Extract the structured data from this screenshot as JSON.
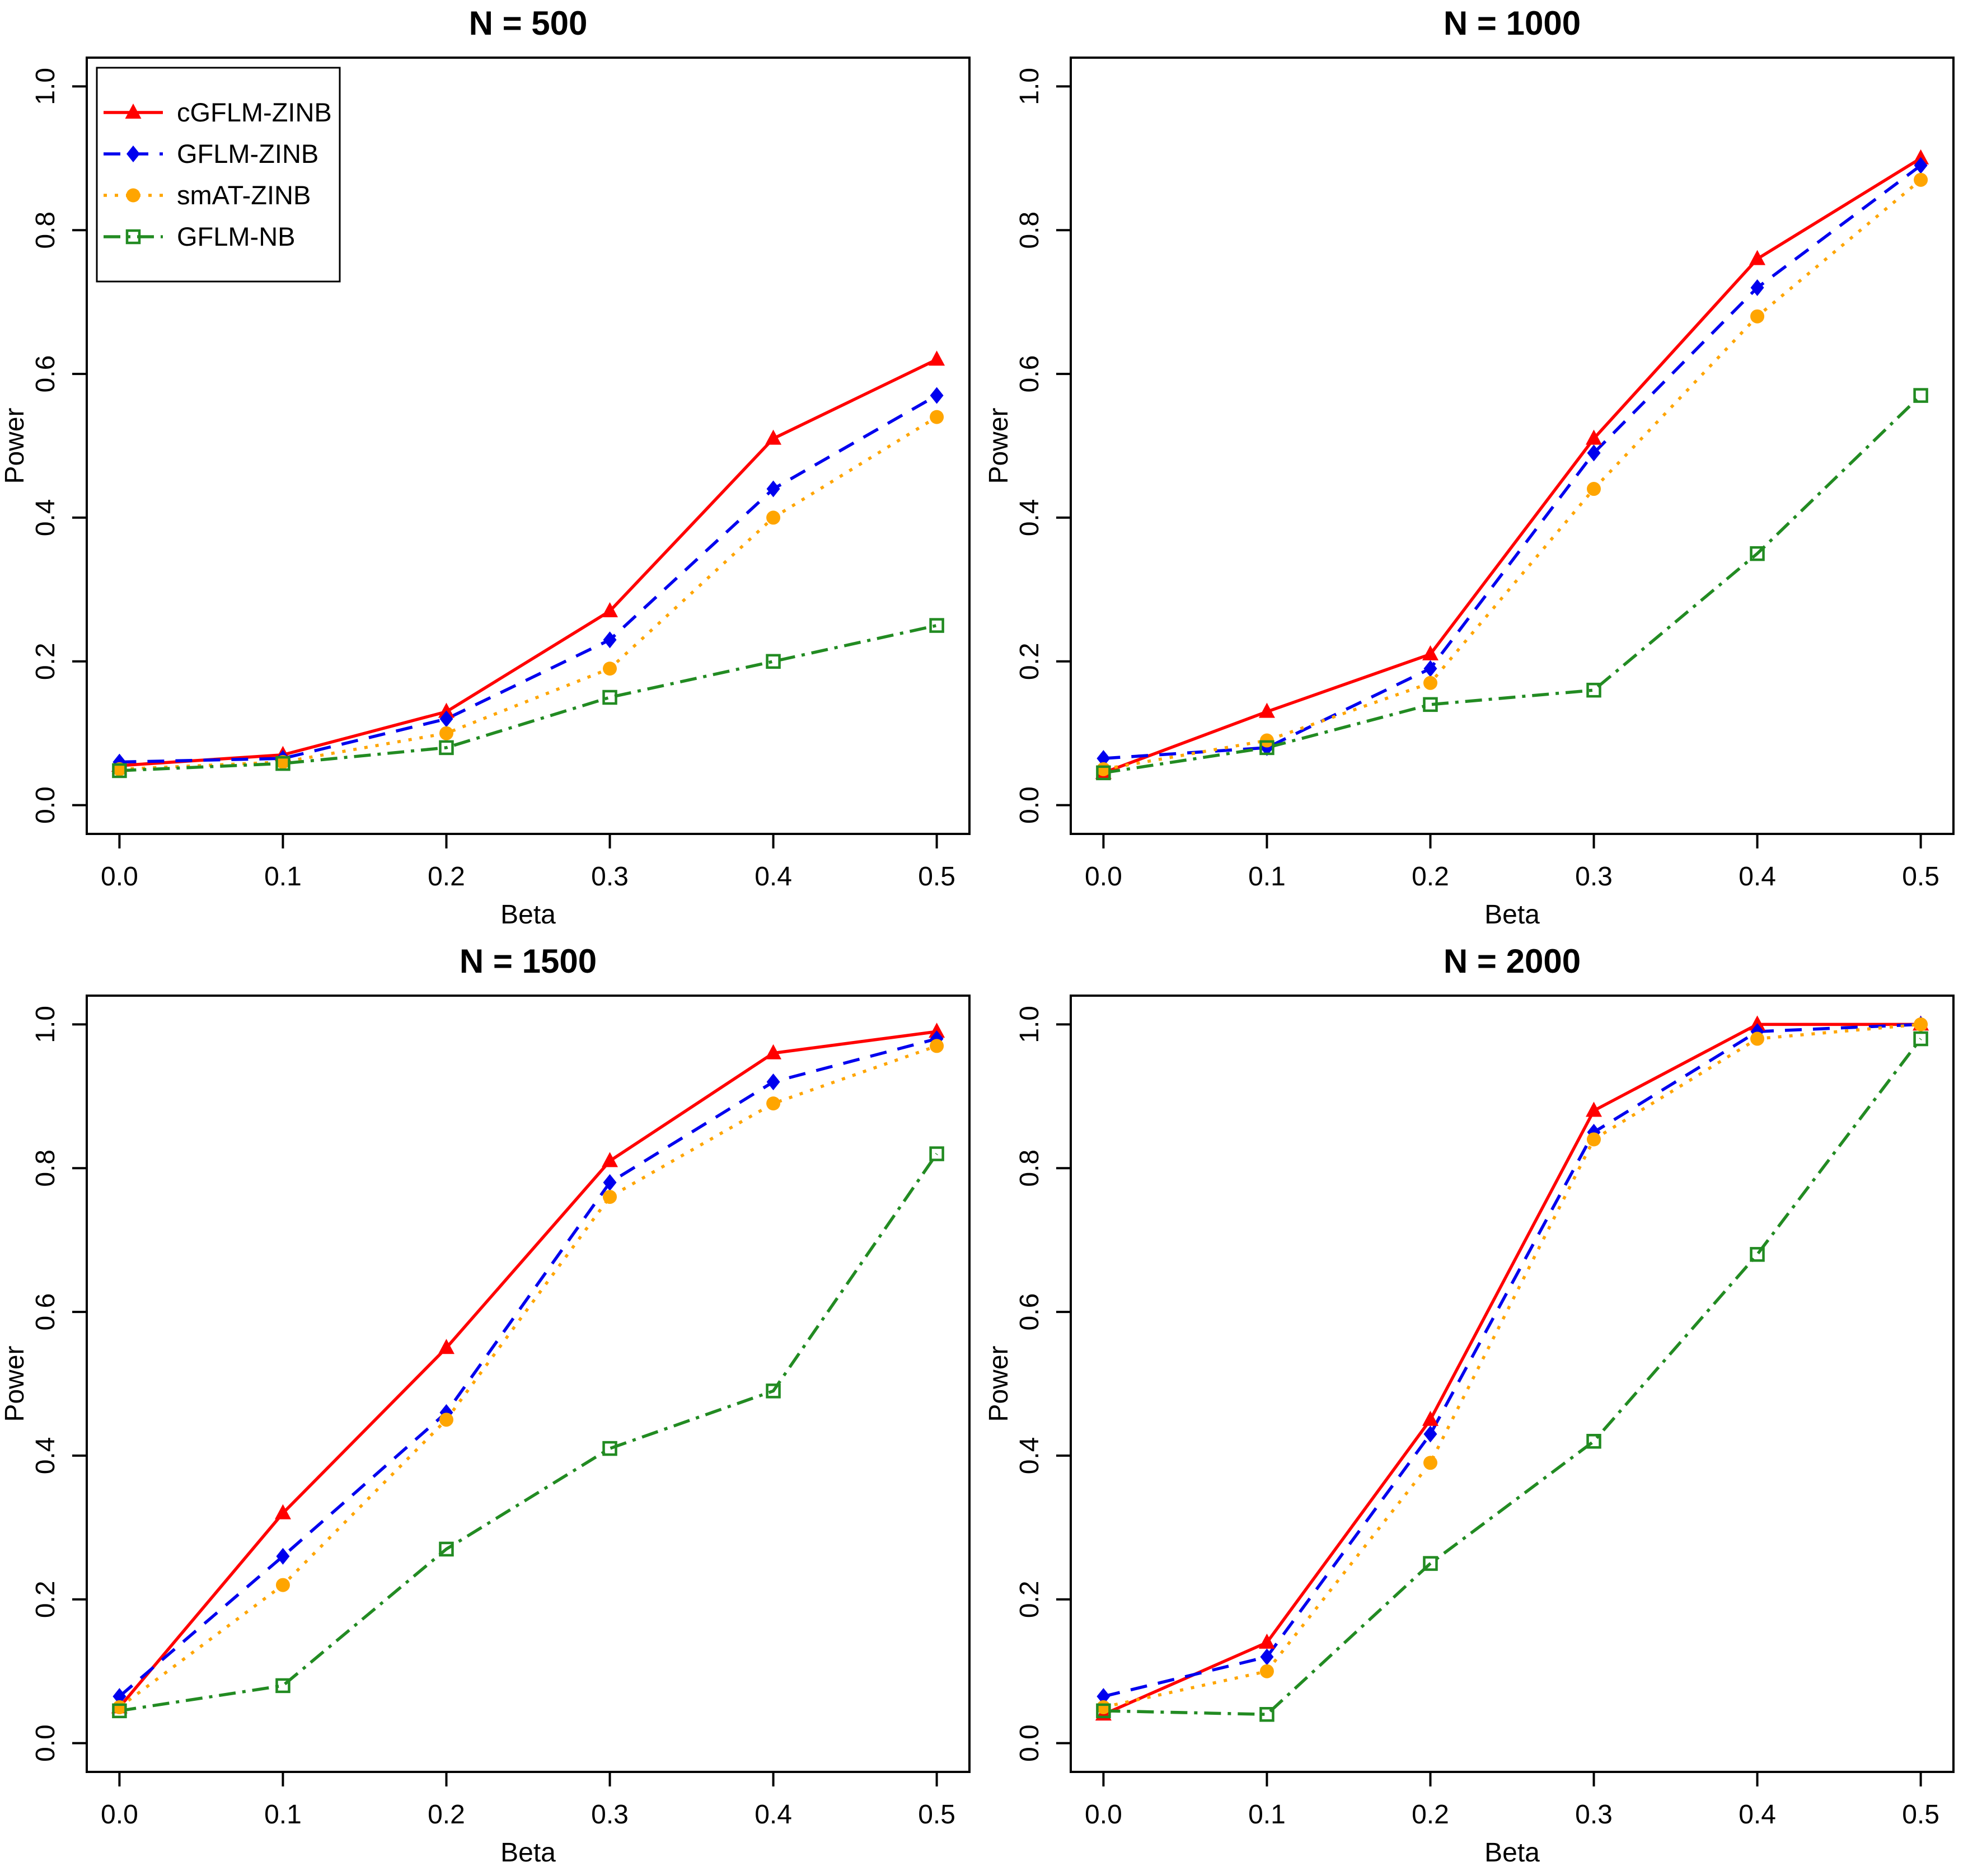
{
  "figure": {
    "background": "#ffffff",
    "axis_color": "#000000",
    "xlabel": "Beta",
    "ylabel": "Power",
    "x_tick_values": [
      0.0,
      0.1,
      0.2,
      0.3,
      0.4,
      0.5
    ],
    "x_tick_labels": [
      "0.0",
      "0.1",
      "0.2",
      "0.3",
      "0.4",
      "0.5"
    ],
    "y_tick_values": [
      0.0,
      0.2,
      0.4,
      0.6,
      0.8,
      1.0
    ],
    "y_tick_labels": [
      "0.0",
      "0.2",
      "0.4",
      "0.6",
      "0.8",
      "1.0"
    ]
  },
  "series_meta": [
    {
      "name": "cGFLM-ZINB",
      "color": "#FF0000",
      "marker": "triangle",
      "linestyle": "solid"
    },
    {
      "name": "GFLM-ZINB",
      "color": "#0000EE",
      "marker": "diamond",
      "linestyle": "dashed"
    },
    {
      "name": "smAT-ZINB",
      "color": "#FFA500",
      "marker": "circle",
      "linestyle": "dotted"
    },
    {
      "name": "GFLM-NB",
      "color": "#228B22",
      "marker": "open-square",
      "linestyle": "dotdash"
    }
  ],
  "legend": {
    "position": "topleft",
    "entries": [
      "cGFLM-ZINB",
      "GFLM-ZINB",
      "smAT-ZINB",
      "GFLM-NB"
    ]
  },
  "chart_data": [
    {
      "type": "line",
      "title": "N = 500",
      "xlabel": "Beta",
      "ylabel": "Power",
      "x": [
        0.0,
        0.1,
        0.2,
        0.3,
        0.4,
        0.5
      ],
      "xlim": [
        0.0,
        0.5
      ],
      "ylim": [
        0.0,
        1.0
      ],
      "grid": false,
      "legend": true,
      "series": [
        {
          "name": "cGFLM-ZINB",
          "values": [
            0.055,
            0.07,
            0.13,
            0.27,
            0.51,
            0.62
          ]
        },
        {
          "name": "GFLM-ZINB",
          "values": [
            0.06,
            0.065,
            0.12,
            0.23,
            0.44,
            0.57
          ]
        },
        {
          "name": "smAT-ZINB",
          "values": [
            0.05,
            0.06,
            0.1,
            0.19,
            0.4,
            0.54
          ]
        },
        {
          "name": "GFLM-NB",
          "values": [
            0.048,
            0.058,
            0.08,
            0.15,
            0.2,
            0.25
          ]
        }
      ]
    },
    {
      "type": "line",
      "title": "N = 1000",
      "xlabel": "Beta",
      "ylabel": "Power",
      "x": [
        0.0,
        0.1,
        0.2,
        0.3,
        0.4,
        0.5
      ],
      "xlim": [
        0.0,
        0.5
      ],
      "ylim": [
        0.0,
        1.0
      ],
      "grid": false,
      "legend": false,
      "series": [
        {
          "name": "cGFLM-ZINB",
          "values": [
            0.045,
            0.13,
            0.21,
            0.51,
            0.76,
            0.9
          ]
        },
        {
          "name": "GFLM-ZINB",
          "values": [
            0.065,
            0.08,
            0.19,
            0.49,
            0.72,
            0.89
          ]
        },
        {
          "name": "smAT-ZINB",
          "values": [
            0.05,
            0.09,
            0.17,
            0.44,
            0.68,
            0.87
          ]
        },
        {
          "name": "GFLM-NB",
          "values": [
            0.045,
            0.08,
            0.14,
            0.16,
            0.35,
            0.57
          ]
        }
      ]
    },
    {
      "type": "line",
      "title": "N = 1500",
      "xlabel": "Beta",
      "ylabel": "Power",
      "x": [
        0.0,
        0.1,
        0.2,
        0.3,
        0.4,
        0.5
      ],
      "xlim": [
        0.0,
        0.5
      ],
      "ylim": [
        0.0,
        1.0
      ],
      "grid": false,
      "legend": false,
      "series": [
        {
          "name": "cGFLM-ZINB",
          "values": [
            0.05,
            0.32,
            0.55,
            0.81,
            0.96,
            0.99
          ]
        },
        {
          "name": "GFLM-ZINB",
          "values": [
            0.065,
            0.26,
            0.46,
            0.78,
            0.92,
            0.98
          ]
        },
        {
          "name": "smAT-ZINB",
          "values": [
            0.05,
            0.22,
            0.45,
            0.76,
            0.89,
            0.97
          ]
        },
        {
          "name": "GFLM-NB",
          "values": [
            0.045,
            0.08,
            0.27,
            0.41,
            0.49,
            0.82
          ]
        }
      ]
    },
    {
      "type": "line",
      "title": "N = 2000",
      "xlabel": "Beta",
      "ylabel": "Power",
      "x": [
        0.0,
        0.1,
        0.2,
        0.3,
        0.4,
        0.5
      ],
      "xlim": [
        0.0,
        0.5
      ],
      "ylim": [
        0.0,
        1.0
      ],
      "grid": false,
      "legend": false,
      "series": [
        {
          "name": "cGFLM-ZINB",
          "values": [
            0.04,
            0.14,
            0.45,
            0.88,
            1.0,
            1.0
          ]
        },
        {
          "name": "GFLM-ZINB",
          "values": [
            0.065,
            0.12,
            0.43,
            0.85,
            0.99,
            1.0
          ]
        },
        {
          "name": "smAT-ZINB",
          "values": [
            0.05,
            0.1,
            0.39,
            0.84,
            0.98,
            1.0
          ]
        },
        {
          "name": "GFLM-NB",
          "values": [
            0.045,
            0.04,
            0.25,
            0.42,
            0.68,
            0.98
          ]
        }
      ]
    }
  ]
}
